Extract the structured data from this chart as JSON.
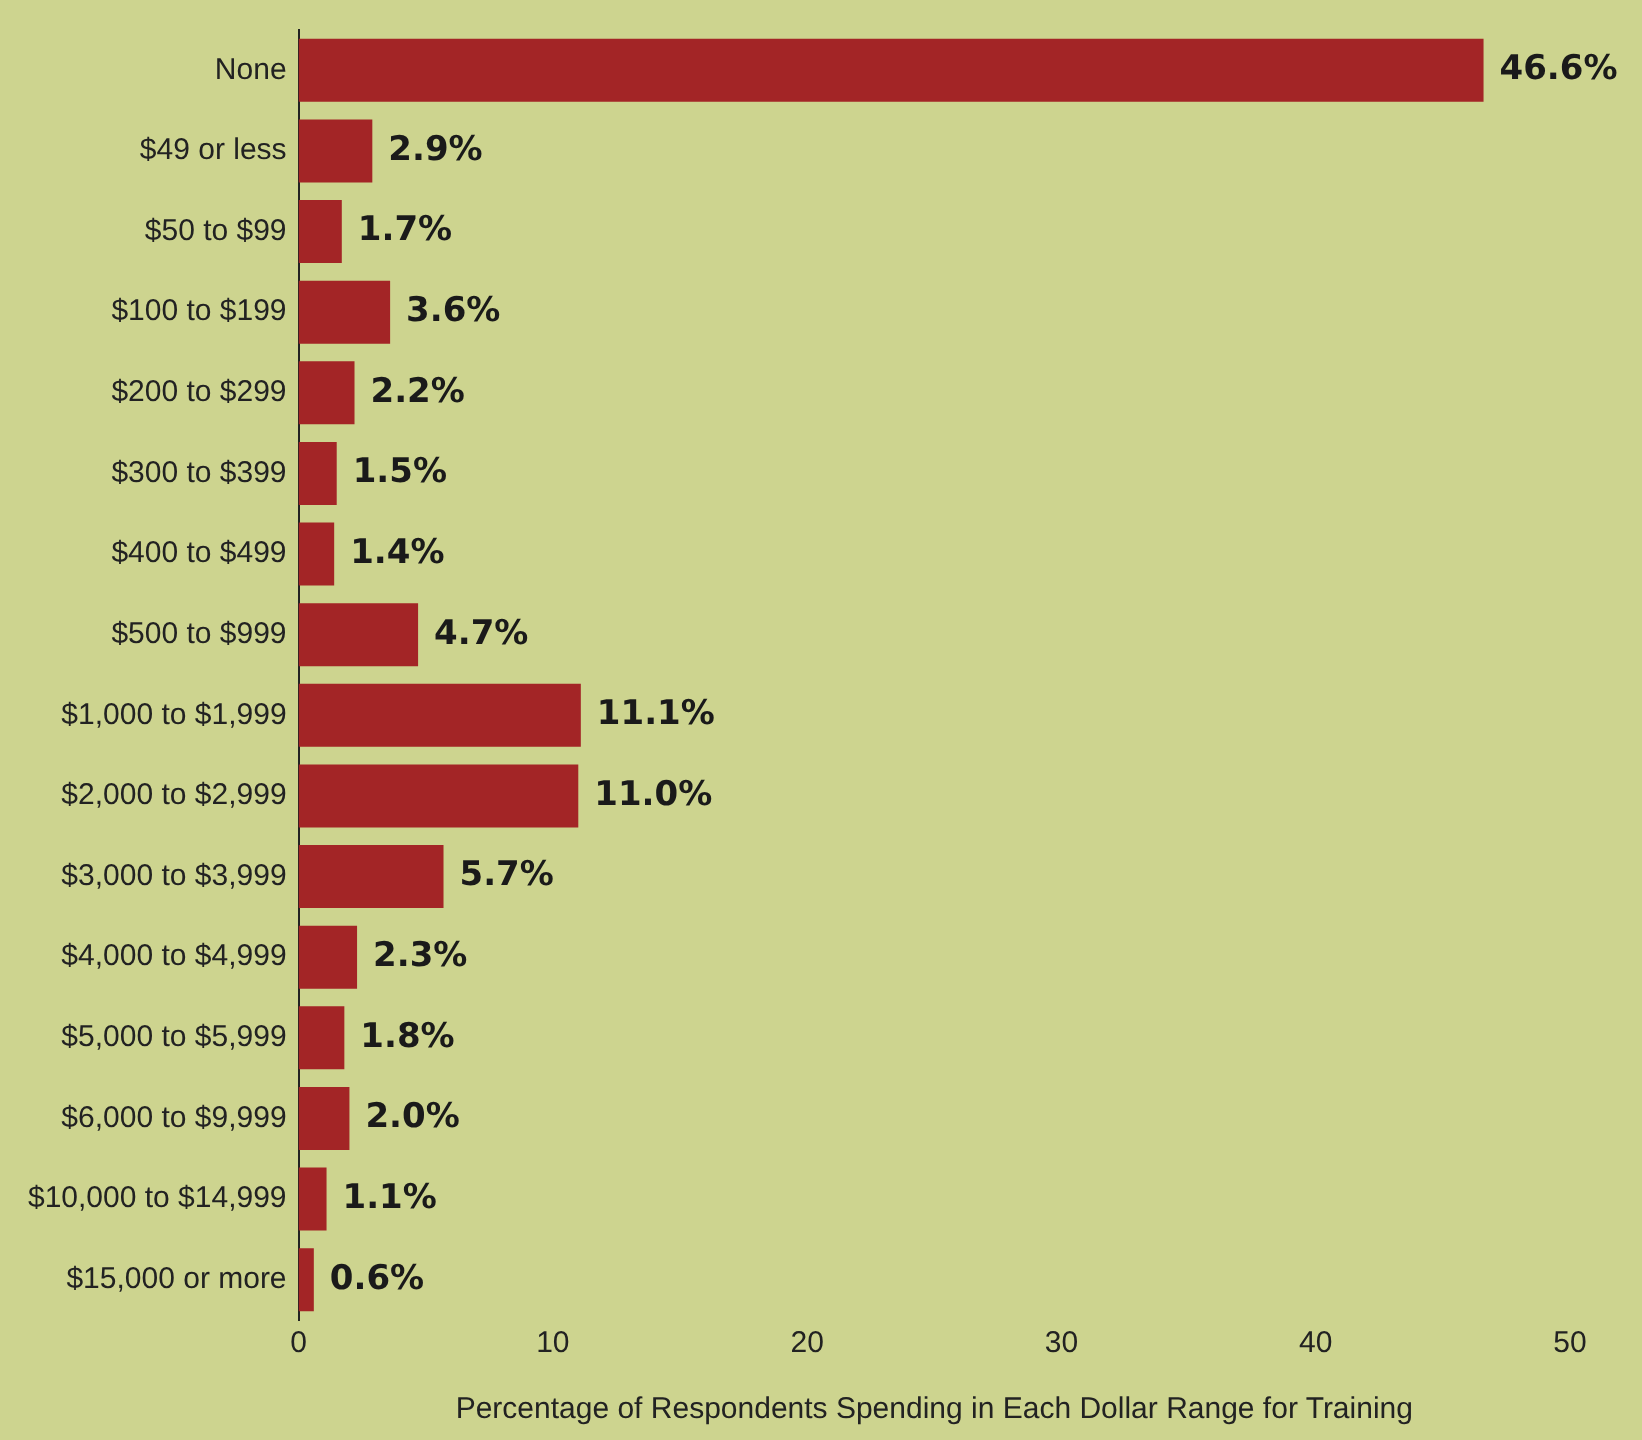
{
  "chart_data": {
    "type": "bar",
    "orientation": "horizontal",
    "xlabel": "Percentage of Respondents Spending in Each Dollar Range for Training",
    "categories": [
      "None",
      "$49 or less",
      "$50 to $99",
      "$100 to $199",
      "$200 to $299",
      "$300 to $399",
      "$400 to $499",
      "$500 to $999",
      "$1,000 to $1,999",
      "$2,000 to $2,999",
      "$3,000 to $3,999",
      "$4,000 to $4,999",
      "$5,000 to $5,999",
      "$6,000 to $9,999",
      "$10,000 to $14,999",
      "$15,000 or more"
    ],
    "values": [
      46.6,
      2.9,
      1.7,
      3.6,
      2.2,
      1.5,
      1.4,
      4.7,
      11.1,
      11.0,
      5.7,
      2.3,
      1.8,
      2.0,
      1.1,
      0.6
    ],
    "value_labels": [
      "46.6%",
      "2.9%",
      "1.7%",
      "3.6%",
      "2.2%",
      "1.5%",
      "1.4%",
      "4.7%",
      "11.1%",
      "11.0%",
      "5.7%",
      "2.3%",
      "1.8%",
      "2.0%",
      "1.1%",
      "0.6%"
    ],
    "color": "#a32526",
    "xlim": [
      0,
      50
    ],
    "xticks": [
      0,
      10,
      20,
      30,
      40,
      50
    ],
    "grid": false,
    "legend": false
  }
}
